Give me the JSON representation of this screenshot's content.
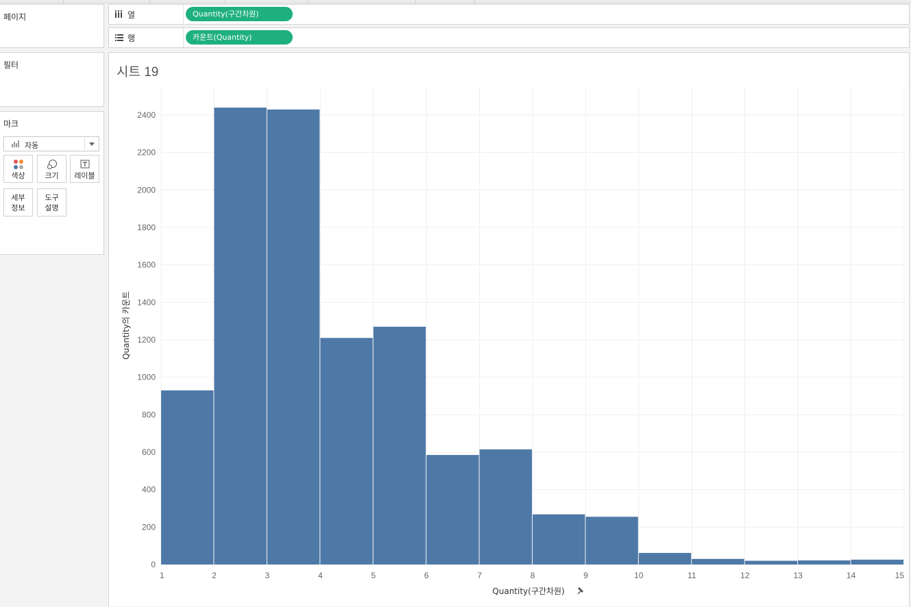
{
  "panels": {
    "pages_title": "페이지",
    "filters_title": "필터",
    "marks_title": "마크",
    "mark_type": "자동",
    "mark_buttons": {
      "color": "색상",
      "size": "크기",
      "label": "레이블",
      "detail_line1": "세부",
      "detail_line2": "정보",
      "tooltip_line1": "도구",
      "tooltip_line2": "설명"
    }
  },
  "shelves": {
    "columns_label": "열",
    "columns_pill": "Quantity(구간차원)",
    "rows_label": "행",
    "rows_pill": "카운트(Quantity)"
  },
  "sheet_title": "시트 19",
  "colors": {
    "bar": "#4e79a7",
    "pill": "#1fb07f"
  },
  "chart_data": {
    "type": "bar",
    "xlabel": "Quantity(구간차원)",
    "ylabel": "Quantity의 카운트",
    "x_ticks": [
      1,
      2,
      3,
      4,
      5,
      6,
      7,
      8,
      9,
      10,
      11,
      12,
      13,
      14,
      15
    ],
    "y_ticks": [
      0,
      200,
      400,
      600,
      800,
      1000,
      1200,
      1400,
      1600,
      1800,
      2000,
      2200,
      2400
    ],
    "ylim": [
      0,
      2550
    ],
    "grid": true,
    "bins": [
      {
        "start": 1,
        "end": 2,
        "value": 930
      },
      {
        "start": 2,
        "end": 3,
        "value": 2440
      },
      {
        "start": 3,
        "end": 4,
        "value": 2430
      },
      {
        "start": 4,
        "end": 5,
        "value": 1210
      },
      {
        "start": 5,
        "end": 6,
        "value": 1270
      },
      {
        "start": 6,
        "end": 7,
        "value": 585
      },
      {
        "start": 7,
        "end": 8,
        "value": 615
      },
      {
        "start": 8,
        "end": 9,
        "value": 268
      },
      {
        "start": 9,
        "end": 10,
        "value": 255
      },
      {
        "start": 10,
        "end": 11,
        "value": 62
      },
      {
        "start": 11,
        "end": 12,
        "value": 30
      },
      {
        "start": 12,
        "end": 13,
        "value": 20
      },
      {
        "start": 13,
        "end": 14,
        "value": 22
      },
      {
        "start": 14,
        "end": 15,
        "value": 26
      }
    ]
  }
}
